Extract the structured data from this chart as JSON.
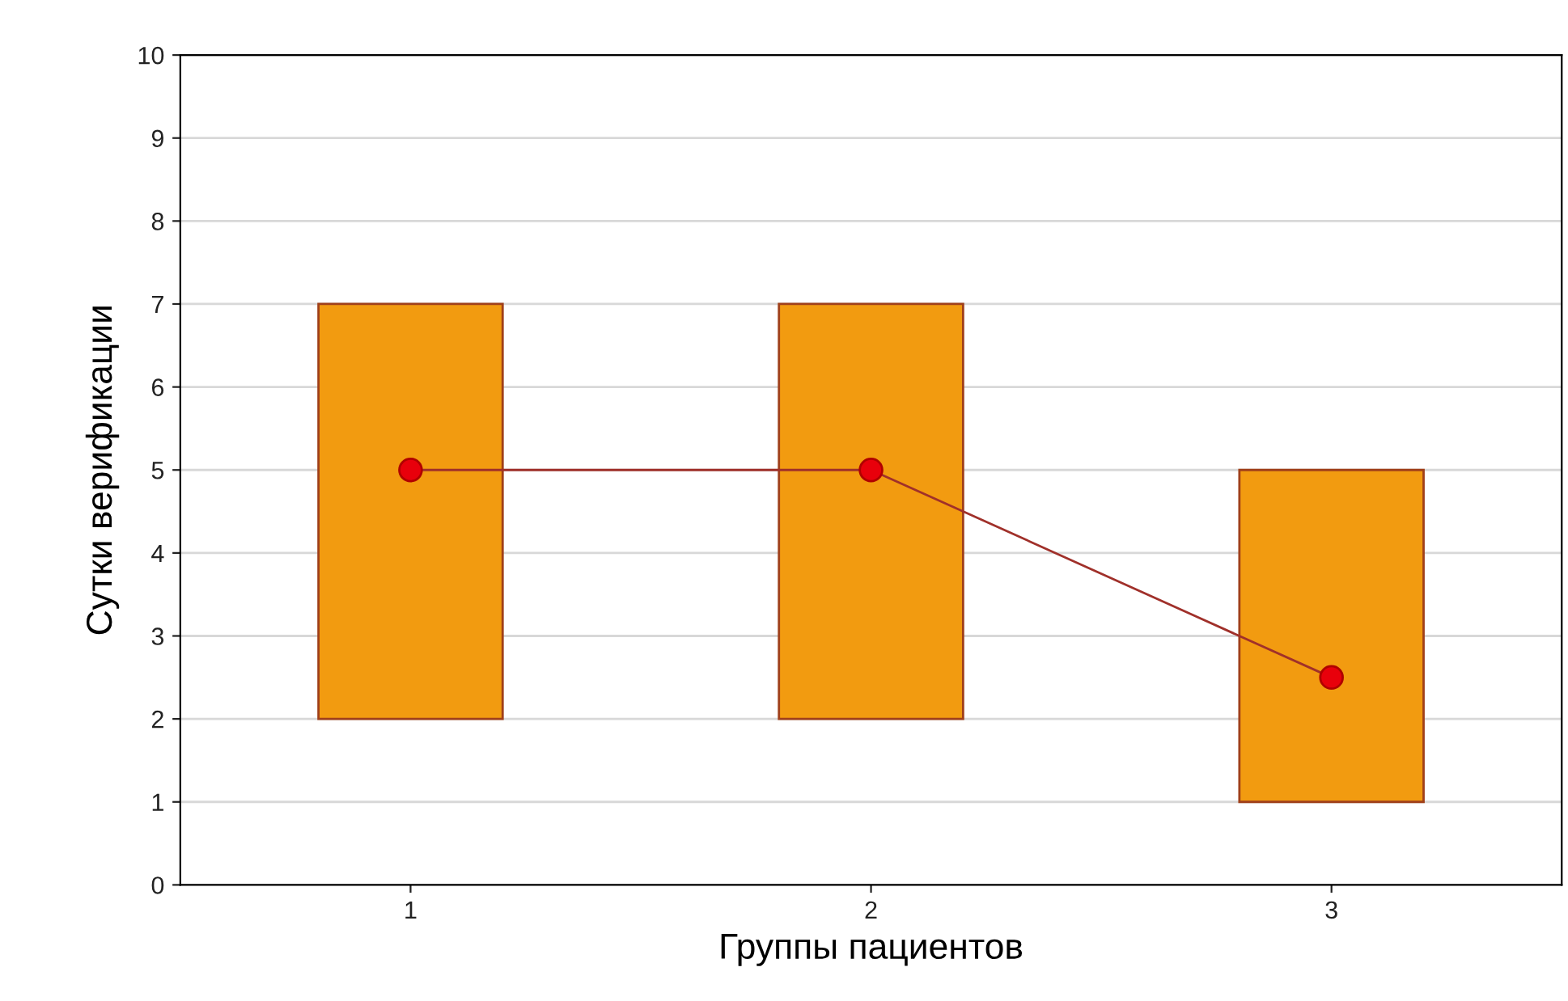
{
  "chart_data": {
    "type": "bar",
    "xlabel": "Группы пациентов",
    "ylabel": "Сутки верификации",
    "categories": [
      "1",
      "2",
      "3"
    ],
    "series": [
      {
        "color": "#f29b10",
        "base": [
          2,
          2,
          1
        ],
        "values": [
          5,
          5,
          4
        ]
      },
      {
        "type": "line",
        "color": "#e8000b",
        "values": [
          5,
          5,
          2.5
        ],
        "marker": "circle",
        "line_style": "solid"
      }
    ],
    "ylim": [
      0,
      10
    ],
    "yticks": [
      0,
      1,
      2,
      3,
      4,
      5,
      6,
      7,
      8,
      9,
      10
    ],
    "grid": "y"
  }
}
